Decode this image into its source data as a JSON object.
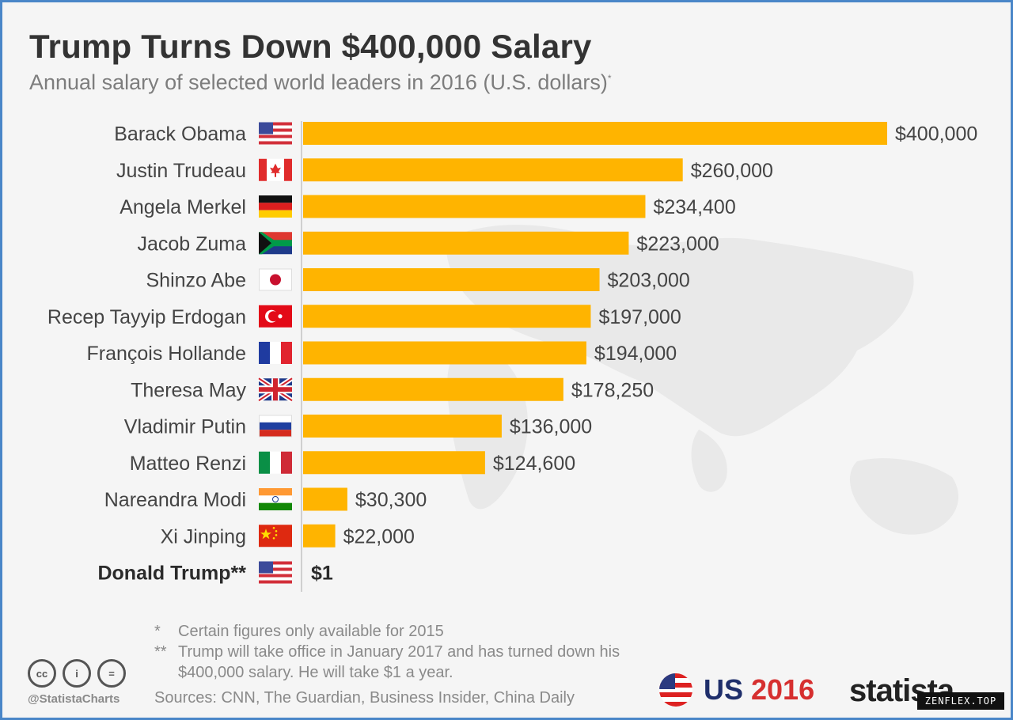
{
  "header": {
    "title": "Trump Turns Down $400,000 Salary",
    "subtitle": "Annual salary of selected world leaders in 2016 (U.S. dollars)",
    "subtitle_mark": "*"
  },
  "chart_data": {
    "type": "bar",
    "orientation": "horizontal",
    "title": "Trump Turns Down $400,000 Salary",
    "subtitle": "Annual salary of selected world leaders in 2016 (U.S. dollars)*",
    "categories": [
      "Barack Obama",
      "Justin Trudeau",
      "Angela Merkel",
      "Jacob Zuma",
      "Shinzo Abe",
      "Recep Tayyip Erdogan",
      "François Hollande",
      "Theresa May",
      "Vladimir Putin",
      "Matteo Renzi",
      "Nareandra Modi",
      "Xi Jinping",
      "Donald Trump**"
    ],
    "values": [
      400000,
      260000,
      234400,
      223000,
      203000,
      197000,
      194000,
      178250,
      136000,
      124600,
      30300,
      22000,
      1
    ],
    "value_labels": [
      "$400,000",
      "$260,000",
      "$234,400",
      "$223,000",
      "$203,000",
      "$197,000",
      "$194,000",
      "$178,250",
      "$136,000",
      "$124,600",
      "$30,300",
      "$22,000",
      "$1"
    ],
    "flags": [
      "us-flag-icon",
      "canada-flag-icon",
      "germany-flag-icon",
      "south-africa-flag-icon",
      "japan-flag-icon",
      "turkey-flag-icon",
      "france-flag-icon",
      "uk-flag-icon",
      "russia-flag-icon",
      "italy-flag-icon",
      "india-flag-icon",
      "china-flag-icon",
      "us-flag-icon"
    ],
    "highlight_category": "Donald Trump**",
    "xlim": [
      0,
      400000
    ],
    "bar_color": "#ffb400",
    "grid": false,
    "legend": "none"
  },
  "footnotes": [
    {
      "mark": "*",
      "text": "Certain figures only available for 2015"
    },
    {
      "mark": "**",
      "text": "Trump will take office in January 2017 and has turned down his $400,000 salary. He will take $1 a year."
    }
  ],
  "footer": {
    "sources": "Sources: CNN, The Guardian, Business Insider, China Daily",
    "handle": "@StatistaCharts",
    "cc_icons": [
      {
        "name": "cc-icon",
        "glyph": "cc"
      },
      {
        "name": "attribution-icon",
        "glyph": "i"
      },
      {
        "name": "equal-icon",
        "glyph": "="
      }
    ],
    "badge_us": "US",
    "badge_year": "2016",
    "brand": "statista",
    "watermark": "ZENFLEX.TOP"
  },
  "colors": {
    "bar": "#ffb400",
    "title": "#333333",
    "subtitle": "#7d7d7d",
    "frame_border": "#4a86c8",
    "us_red": "#d62f2f",
    "us_blue": "#1f2f6b"
  }
}
